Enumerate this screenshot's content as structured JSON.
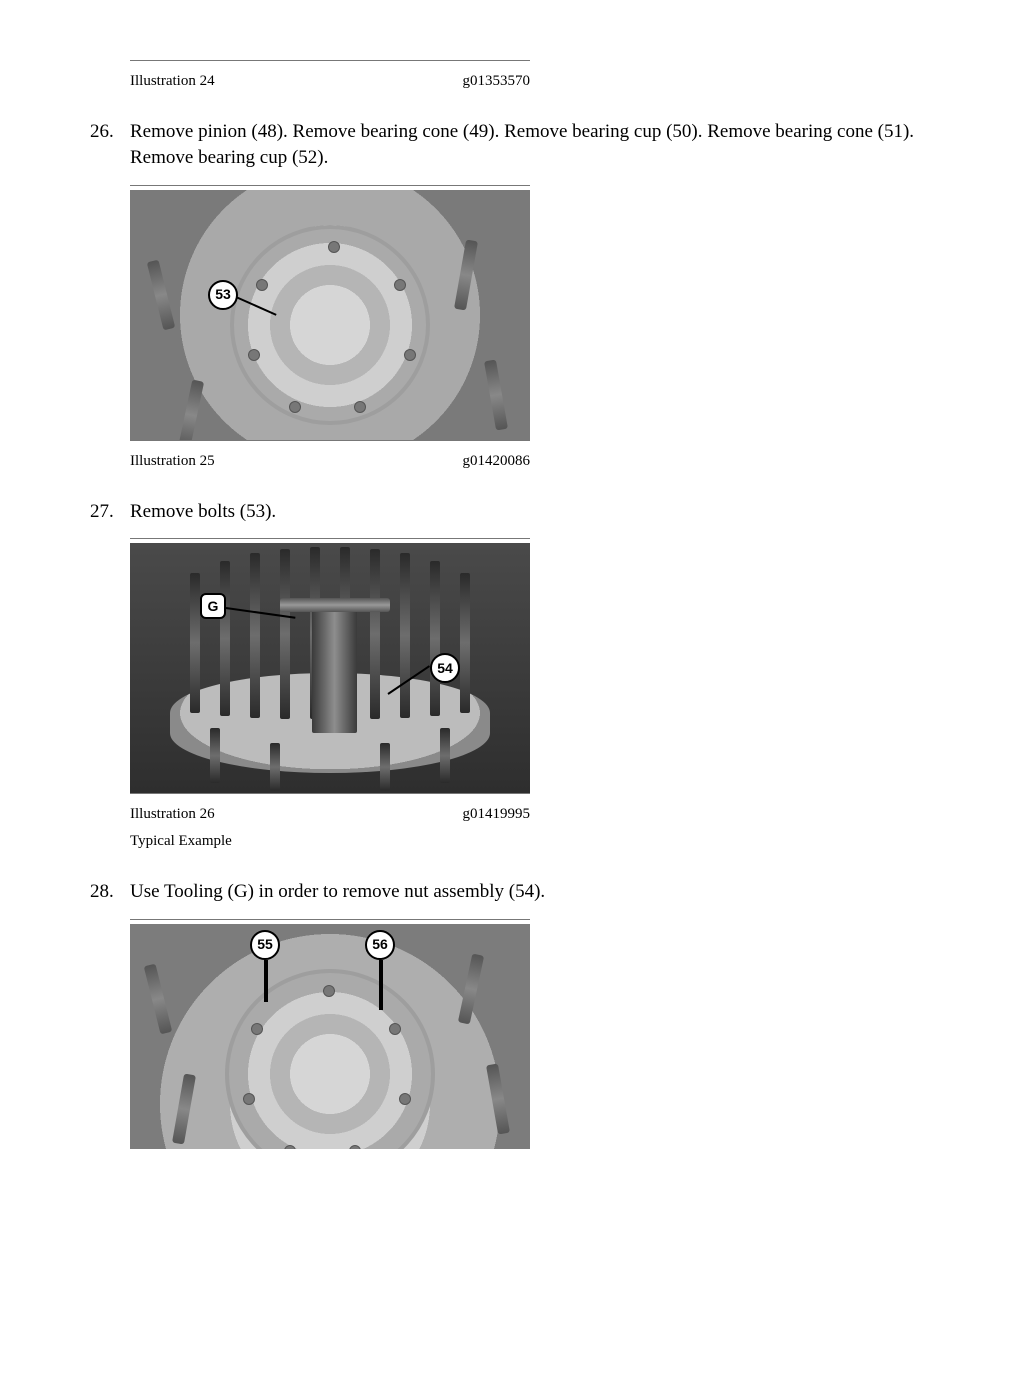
{
  "ill24": {
    "label": "Illustration 24",
    "code": "g01353570"
  },
  "step26": {
    "num": "26.",
    "text": "Remove pinion (48). Remove bearing cone (49). Remove bearing cup (50). Remove bearing cone (51). Remove bearing cup (52)."
  },
  "figA": {
    "callout53": "53"
  },
  "ill25": {
    "label": "Illustration 25",
    "code": "g01420086"
  },
  "step27": {
    "num": "27.",
    "text": "Remove bolts (53)."
  },
  "figB": {
    "calloutG": "G",
    "callout54": "54"
  },
  "ill26": {
    "label": "Illustration 26",
    "code": "g01419995",
    "subtext": "Typical Example"
  },
  "step28": {
    "num": "28.",
    "text": "Use Tooling (G) in order to remove nut assembly (54)."
  },
  "figC": {
    "callout55": "55",
    "callout56": "56"
  }
}
